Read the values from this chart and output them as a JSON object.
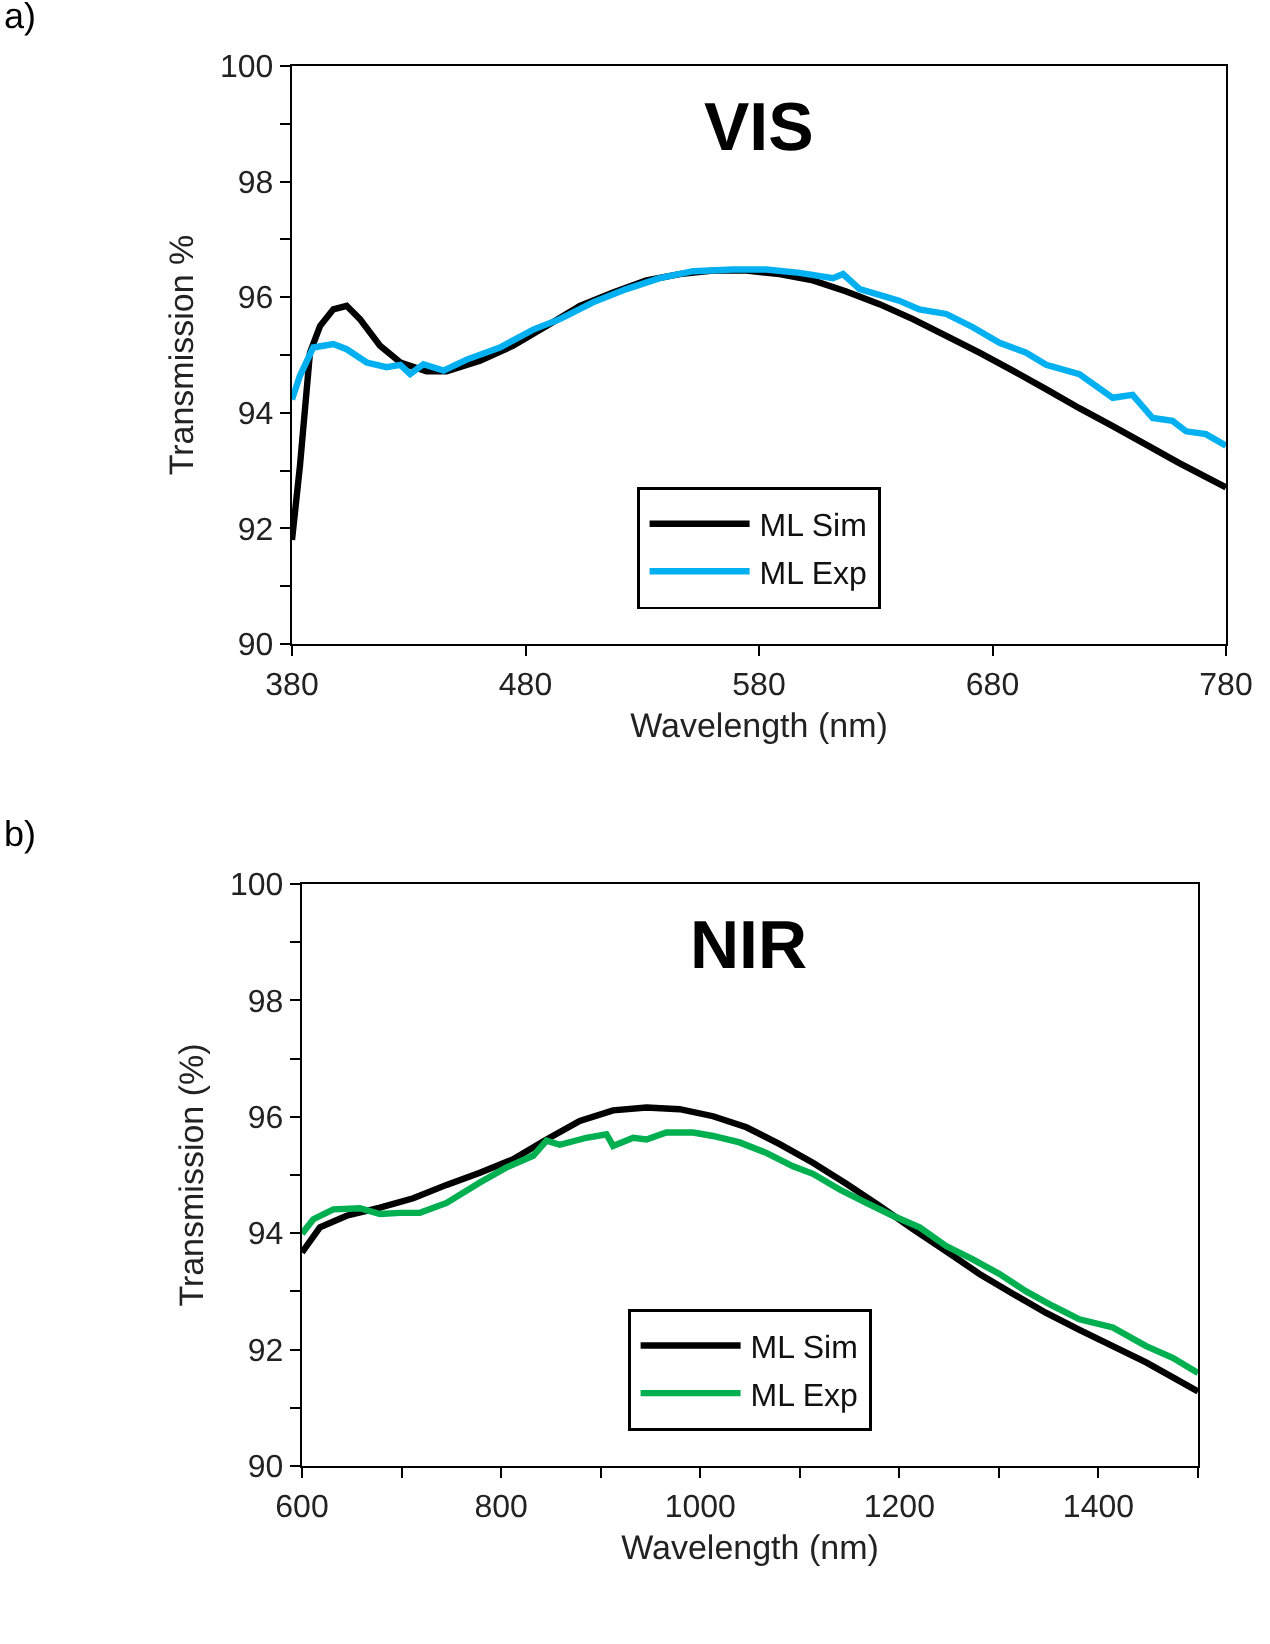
{
  "chart_data": [
    {
      "type": "line",
      "title": "VIS",
      "annotations": [
        "a)"
      ],
      "xlabel": "Wavelength (nm)",
      "ylabel": "Transmission %",
      "xlim": [
        380,
        780
      ],
      "xticks": [
        380,
        480,
        580,
        680,
        780
      ],
      "ylim": [
        90,
        100
      ],
      "yticks": [
        90,
        {
          "value": 91,
          "label": null
        },
        92,
        {
          "value": 93,
          "label": null
        },
        94,
        {
          "value": 95,
          "label": null
        },
        96,
        {
          "value": 97,
          "label": null
        },
        98,
        {
          "value": 99,
          "label": null
        },
        100
      ],
      "legend": "bottom",
      "series": [
        {
          "name": "ML Sim",
          "color": "#000000",
          "x": [
            380,
            383.4,
            387.7,
            392,
            397.7,
            403.4,
            409.1,
            417.7,
            426.4,
            437.6,
            446.2,
            460.5,
            474.7,
            489,
            503.3,
            517.5,
            531.8,
            546,
            560.3,
            574.6,
            588.8,
            603.1,
            617.4,
            631.6,
            645.9,
            660.2,
            674.4,
            688.7,
            702.9,
            717.2,
            731.5,
            745.8,
            760,
            780
          ],
          "values": [
            91.8,
            93.08,
            95.04,
            95.5,
            95.79,
            95.85,
            95.62,
            95.16,
            94.87,
            94.72,
            94.72,
            94.9,
            95.16,
            95.5,
            95.85,
            96.08,
            96.29,
            96.4,
            96.46,
            96.46,
            96.4,
            96.29,
            96.1,
            95.88,
            95.62,
            95.33,
            95.04,
            94.73,
            94.41,
            94.08,
            93.77,
            93.45,
            93.13,
            92.71
          ]
        },
        {
          "name": "ML Exp",
          "color": "#00b0f0",
          "x": [
            380,
            383.4,
            389.1,
            397.7,
            403.4,
            412,
            420.5,
            426.4,
            430.6,
            436.3,
            444.9,
            454.8,
            469,
            483.3,
            494.7,
            508.9,
            523.2,
            537.5,
            551.8,
            568.9,
            583.1,
            597.4,
            611.7,
            616,
            623.1,
            640,
            648.7,
            660.2,
            671.6,
            683,
            694.4,
            703,
            717.2,
            731.5,
            740,
            748.6,
            757.1,
            762.9,
            771.4,
            780
          ],
          "values": [
            94.23,
            94.64,
            95.13,
            95.19,
            95.1,
            94.87,
            94.79,
            94.83,
            94.67,
            94.84,
            94.73,
            94.92,
            95.13,
            95.44,
            95.62,
            95.91,
            96.14,
            96.33,
            96.45,
            96.48,
            96.48,
            96.42,
            96.33,
            96.4,
            96.14,
            95.94,
            95.79,
            95.71,
            95.48,
            95.21,
            95.04,
            94.83,
            94.67,
            94.26,
            94.31,
            93.91,
            93.86,
            93.68,
            93.63,
            93.43
          ]
        }
      ]
    },
    {
      "type": "line",
      "title": "NIR",
      "annotations": [
        "b)"
      ],
      "xlabel": "Wavelength (nm)",
      "ylabel": "Transmission (%)",
      "xlim": [
        600,
        1500
      ],
      "xticks": [
        600,
        {
          "value": 700,
          "label": null
        },
        800,
        {
          "value": 900,
          "label": null
        },
        1000,
        {
          "value": 1100,
          "label": null
        },
        1200,
        {
          "value": 1300,
          "label": null
        },
        1400,
        {
          "value": 1500,
          "label": null
        }
      ],
      "ylim": [
        90,
        100
      ],
      "yticks": [
        90,
        {
          "value": 91,
          "label": null
        },
        92,
        {
          "value": 93,
          "label": null
        },
        94,
        {
          "value": 95,
          "label": null
        },
        96,
        {
          "value": 97,
          "label": null
        },
        98,
        {
          "value": 99,
          "label": null
        },
        100
      ],
      "legend": "bottom",
      "series": [
        {
          "name": "ML Sim",
          "color": "#000000",
          "x": [
            600,
            618,
            644.8,
            678.3,
            711.7,
            745.2,
            778.7,
            812.1,
            845.6,
            879,
            912.5,
            946,
            979.4,
            1012.9,
            1046.4,
            1079.8,
            1113.2,
            1146.7,
            1180.2,
            1213.6,
            1247.1,
            1280.5,
            1314,
            1347.5,
            1380.9,
            1414.4,
            1447.9,
            1500
          ],
          "values": [
            93.67,
            94.1,
            94.3,
            94.44,
            94.6,
            94.83,
            95.04,
            95.27,
            95.61,
            95.93,
            96.11,
            96.16,
            96.13,
            96.01,
            95.82,
            95.53,
            95.21,
            94.85,
            94.47,
            94.07,
            93.69,
            93.3,
            92.96,
            92.63,
            92.34,
            92.06,
            91.78,
            91.28
          ]
        },
        {
          "name": "ML Exp",
          "color": "#00b050",
          "x": [
            600,
            611.4,
            631.5,
            658.2,
            678.3,
            698.4,
            718.4,
            745.2,
            778.7,
            805.4,
            832.2,
            845.6,
            859,
            885.7,
            905.8,
            912.5,
            932.6,
            946,
            966,
            992.8,
            1012.9,
            1039.6,
            1066.4,
            1093.2,
            1113.2,
            1140,
            1166.8,
            1193.5,
            1220.3,
            1247.1,
            1273.8,
            1300.6,
            1327.4,
            1354.1,
            1380.9,
            1414.4,
            1447.9,
            1474.6,
            1500
          ],
          "values": [
            93.99,
            94.24,
            94.41,
            94.43,
            94.33,
            94.35,
            94.35,
            94.52,
            94.87,
            95.13,
            95.33,
            95.59,
            95.52,
            95.64,
            95.7,
            95.5,
            95.64,
            95.61,
            95.73,
            95.73,
            95.67,
            95.56,
            95.38,
            95.15,
            95.02,
            94.75,
            94.52,
            94.3,
            94.1,
            93.78,
            93.55,
            93.3,
            93.0,
            92.75,
            92.52,
            92.38,
            92.06,
            91.86,
            91.6
          ]
        }
      ]
    }
  ]
}
